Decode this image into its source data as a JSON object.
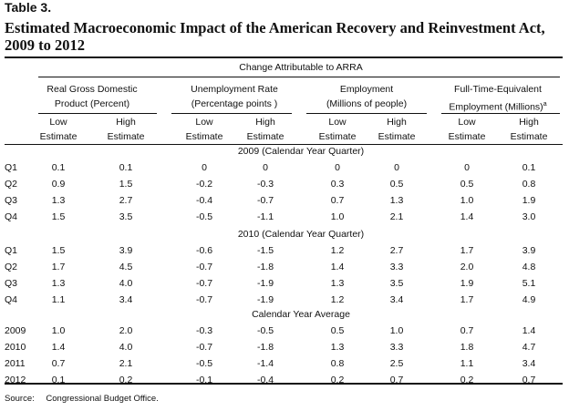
{
  "table_label": "Table 3.",
  "title": "Estimated Macroeconomic Impact of the American Recovery and Reinvestment Act, 2009 to 2012",
  "spanner": "Change Attributable to ARRA",
  "column_groups": [
    {
      "line1": "Real Gross Domestic",
      "line2": "Product (Percent)"
    },
    {
      "line1": "Unemployment Rate",
      "line2": "(Percentage points )"
    },
    {
      "line1": "Employment",
      "line2": "(Millions of people)"
    },
    {
      "line1": "Full-Time-Equivalent",
      "line2": "Employment (Millions)",
      "superscript": "a"
    }
  ],
  "sub_headers": {
    "low_1": "Low",
    "low_2": "Estimate",
    "high_1": "High",
    "high_2": "Estimate"
  },
  "sections": [
    {
      "title": "2009 (Calendar Year Quarter)",
      "rows": [
        {
          "label": "Q1",
          "values": [
            "0.1",
            "0.1",
            "0",
            "0",
            "0",
            "0",
            "0",
            "0.1"
          ]
        },
        {
          "label": "Q2",
          "values": [
            "0.9",
            "1.5",
            "-0.2",
            "-0.3",
            "0.3",
            "0.5",
            "0.5",
            "0.8"
          ]
        },
        {
          "label": "Q3",
          "values": [
            "1.3",
            "2.7",
            "-0.4",
            "-0.7",
            "0.7",
            "1.3",
            "1.0",
            "1.9"
          ]
        },
        {
          "label": "Q4",
          "values": [
            "1.5",
            "3.5",
            "-0.5",
            "-1.1",
            "1.0",
            "2.1",
            "1.4",
            "3.0"
          ]
        }
      ]
    },
    {
      "title": "2010 (Calendar Year Quarter)",
      "rows": [
        {
          "label": "Q1",
          "values": [
            "1.5",
            "3.9",
            "-0.6",
            "-1.5",
            "1.2",
            "2.7",
            "1.7",
            "3.9"
          ]
        },
        {
          "label": "Q2",
          "values": [
            "1.7",
            "4.5",
            "-0.7",
            "-1.8",
            "1.4",
            "3.3",
            "2.0",
            "4.8"
          ]
        },
        {
          "label": "Q3",
          "values": [
            "1.3",
            "4.0",
            "-0.7",
            "-1.9",
            "1.3",
            "3.5",
            "1.9",
            "5.1"
          ]
        },
        {
          "label": "Q4",
          "values": [
            "1.1",
            "3.4",
            "-0.7",
            "-1.9",
            "1.2",
            "3.4",
            "1.7",
            "4.9"
          ]
        }
      ]
    },
    {
      "title": "Calendar Year Average",
      "rows": [
        {
          "label": "2009",
          "values": [
            "1.0",
            "2.0",
            "-0.3",
            "-0.5",
            "0.5",
            "1.0",
            "0.7",
            "1.4"
          ]
        },
        {
          "label": "2010",
          "values": [
            "1.4",
            "4.0",
            "-0.7",
            "-1.8",
            "1.3",
            "3.3",
            "1.8",
            "4.7"
          ]
        },
        {
          "label": "2011",
          "values": [
            "0.7",
            "2.1",
            "-0.5",
            "-1.4",
            "0.8",
            "2.5",
            "1.1",
            "3.4"
          ]
        },
        {
          "label": "2012",
          "values": [
            "0.1",
            "0.2",
            "-0.1",
            "-0.4",
            "0.2",
            "0.7",
            "0.2",
            "0.7"
          ]
        }
      ]
    }
  ],
  "source": {
    "label": "Source:",
    "text": "Congressional Budget Office."
  }
}
